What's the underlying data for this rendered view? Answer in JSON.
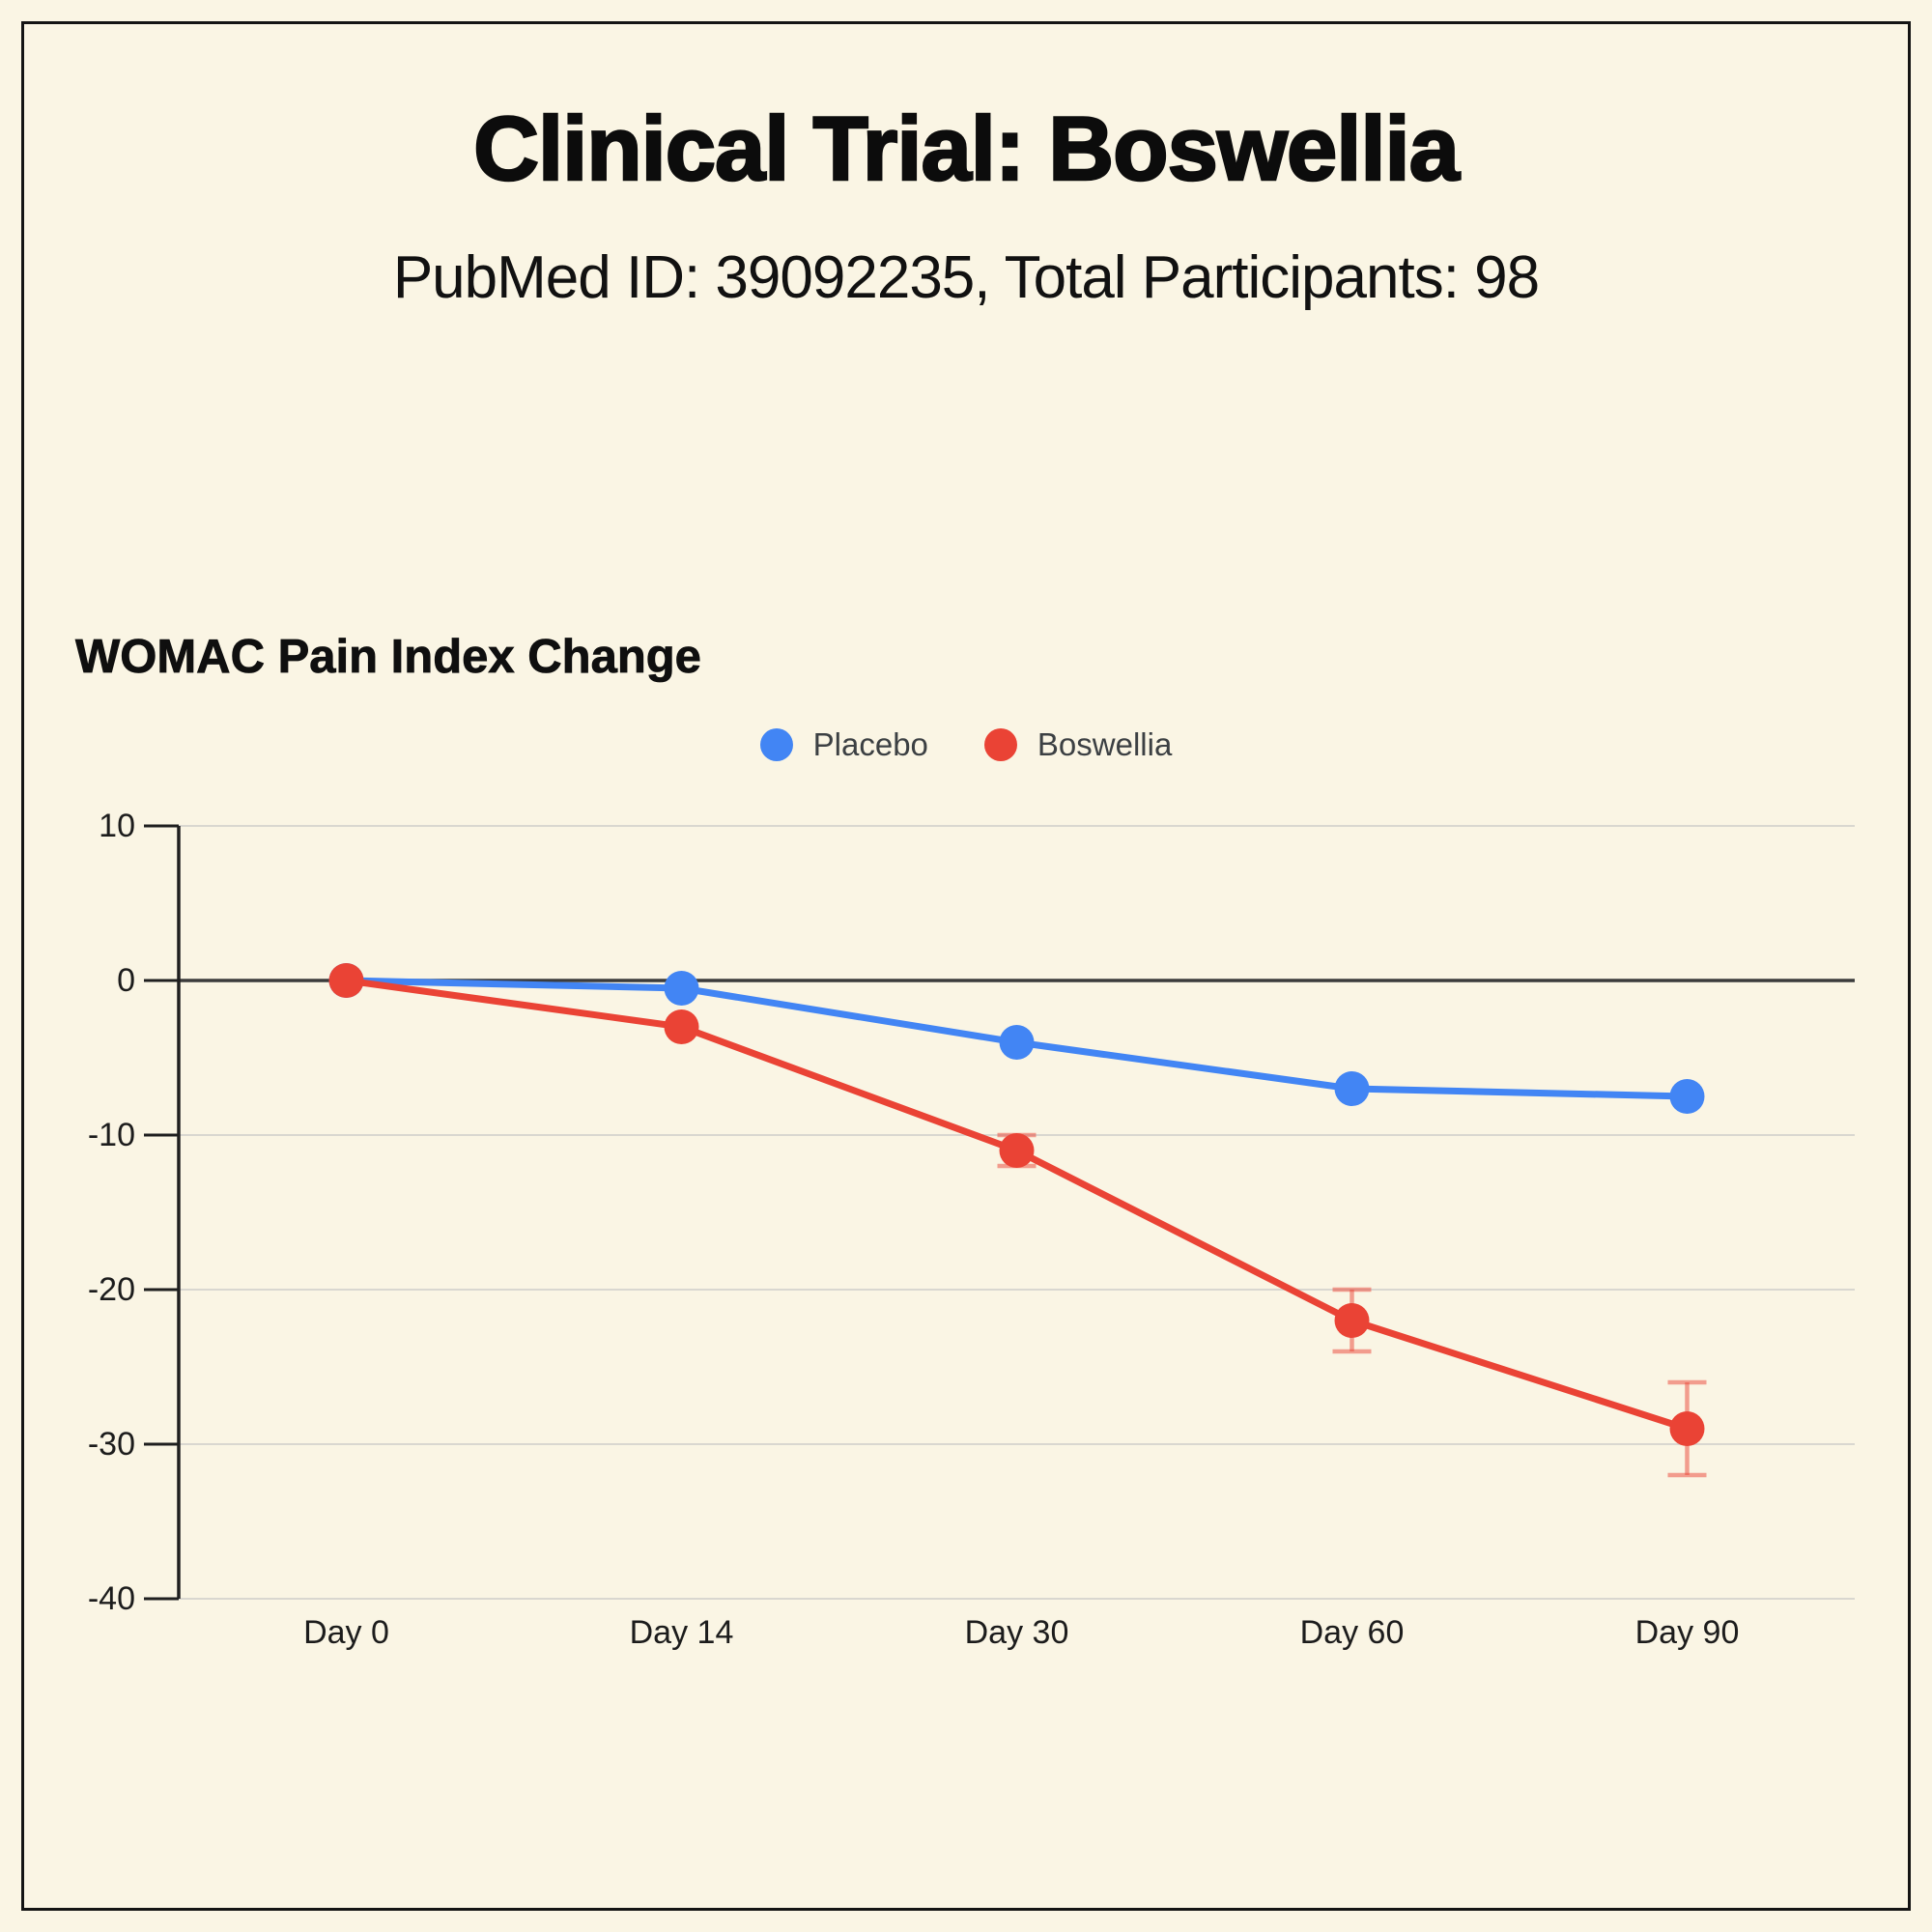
{
  "page": {
    "title": "Clinical Trial: Boswellia",
    "subtitle": "PubMed ID: 39092235, Total Participants: 98",
    "background_color": "#FAF5E4",
    "frame_border_color": "#141414"
  },
  "chart_data": {
    "type": "line",
    "title": "WOMAC Pain Index Change",
    "categories": [
      "Day 0",
      "Day 14",
      "Day 30",
      "Day 60",
      "Day 90"
    ],
    "series": [
      {
        "name": "Placebo",
        "color": "#4285F4",
        "values": [
          0,
          -0.5,
          -4,
          -7,
          -7.5
        ],
        "error": [
          0,
          0,
          0,
          0,
          0
        ]
      },
      {
        "name": "Boswellia",
        "color": "#EA4335",
        "values": [
          0,
          -3,
          -11,
          -22,
          -29
        ],
        "error": [
          0,
          0,
          1,
          2,
          3
        ]
      }
    ],
    "xlabel": "",
    "ylabel": "",
    "ylim": [
      -40,
      10
    ],
    "yticks": [
      10,
      0,
      -10,
      -20,
      -30,
      -40
    ],
    "grid": true,
    "legend_position": "top-center",
    "gridline_color": "#D9D7D0",
    "zero_line_color": "#3B3B3B",
    "axis_color": "#1F1F1F",
    "tick_label_color": "#1C1C1C"
  }
}
